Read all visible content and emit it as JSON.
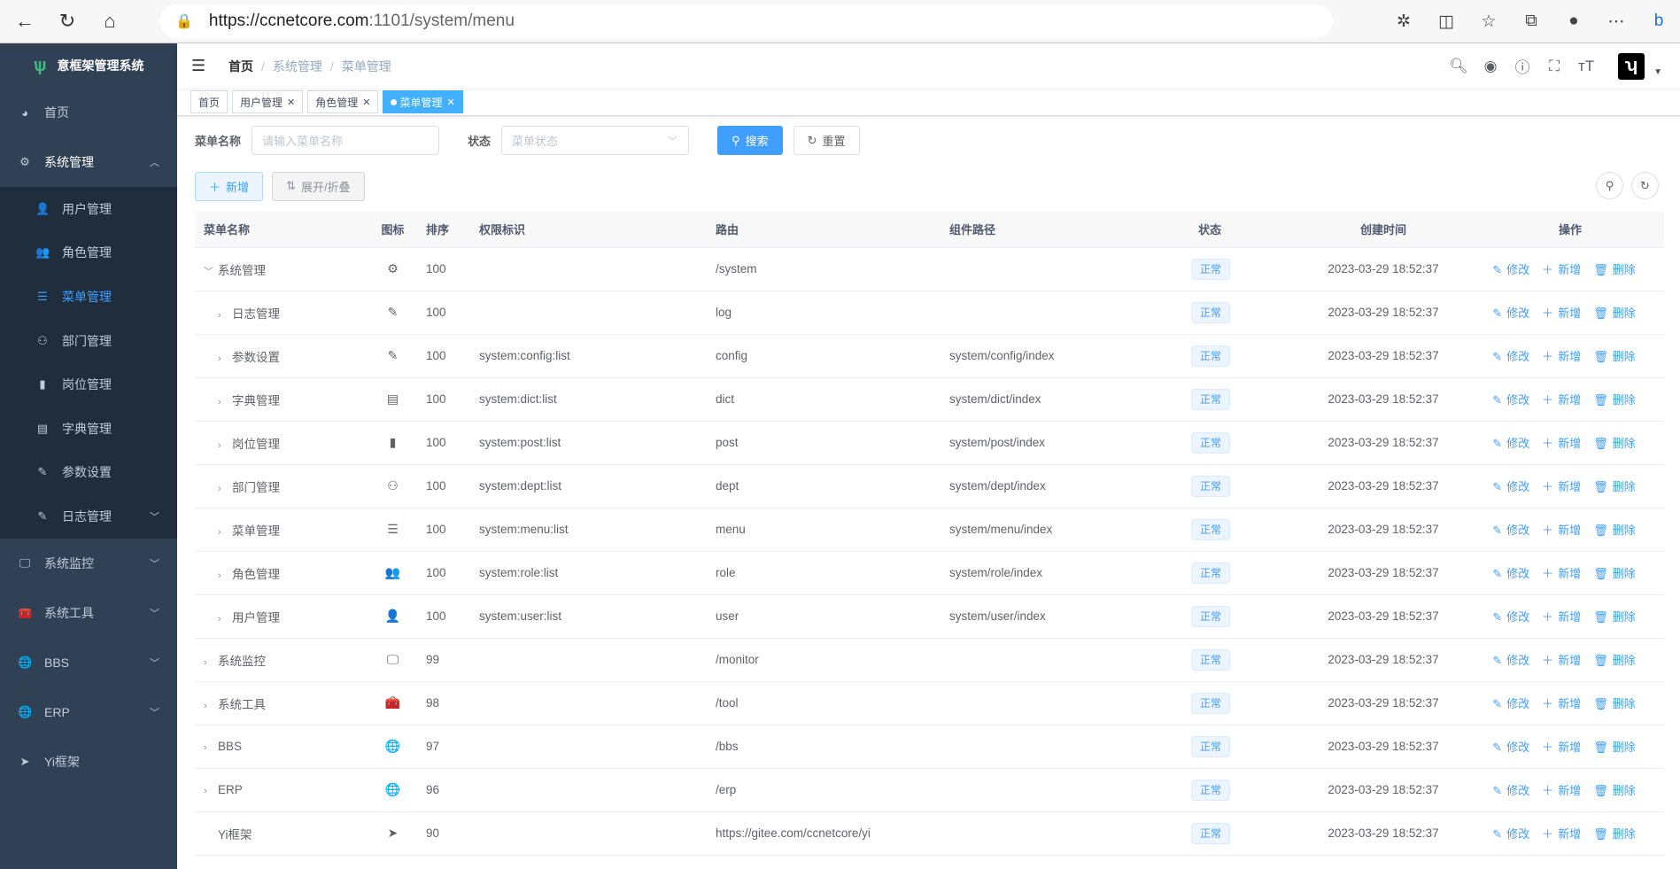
{
  "browser": {
    "url_host": "https://ccnetcore.com",
    "url_path": ":1101/system/menu"
  },
  "sidebar": {
    "title": "意框架管理系统",
    "items": [
      {
        "label": "首页",
        "icon": "dashboard-icon"
      },
      {
        "label": "系统管理",
        "icon": "gear-icon",
        "expanded": true,
        "children": [
          {
            "label": "用户管理",
            "icon": "user-icon"
          },
          {
            "label": "角色管理",
            "icon": "peoples-icon"
          },
          {
            "label": "菜单管理",
            "icon": "tree-table-icon",
            "active": true
          },
          {
            "label": "部门管理",
            "icon": "tree-icon"
          },
          {
            "label": "岗位管理",
            "icon": "post-icon"
          },
          {
            "label": "字典管理",
            "icon": "dict-icon"
          },
          {
            "label": "参数设置",
            "icon": "edit-icon"
          },
          {
            "label": "日志管理",
            "icon": "log-icon"
          }
        ]
      },
      {
        "label": "系统监控",
        "icon": "monitor-icon"
      },
      {
        "label": "系统工具",
        "icon": "tool-icon"
      },
      {
        "label": "BBS",
        "icon": "globe-icon"
      },
      {
        "label": "ERP",
        "icon": "globe-icon"
      },
      {
        "label": "Yi框架",
        "icon": "send-icon"
      }
    ]
  },
  "breadcrumb": [
    "首页",
    "系统管理",
    "菜单管理"
  ],
  "tags": [
    {
      "label": "首页"
    },
    {
      "label": "用户管理"
    },
    {
      "label": "角色管理"
    },
    {
      "label": "菜单管理",
      "active": true
    }
  ],
  "search": {
    "name_label": "菜单名称",
    "name_placeholder": "请输入菜单名称",
    "status_label": "状态",
    "status_placeholder": "菜单状态",
    "search_button": "搜索",
    "reset_button": "重置"
  },
  "toolbar": {
    "add_button": "新增",
    "expand_button": "展开/折叠"
  },
  "table": {
    "columns": [
      "菜单名称",
      "图标",
      "排序",
      "权限标识",
      "路由",
      "组件路径",
      "状态",
      "创建时间",
      "操作"
    ],
    "actions": [
      "修改",
      "新增",
      "删除"
    ],
    "rows": [
      {
        "name": "系统管理",
        "level": 0,
        "expander": "down",
        "icon": "⚙",
        "sort": "100",
        "perms": "",
        "route": "/system",
        "component": "",
        "status": "正常",
        "created": "2023-03-29 18:52:37"
      },
      {
        "name": "日志管理",
        "level": 1,
        "expander": "right",
        "icon": "✎",
        "sort": "100",
        "perms": "",
        "route": "log",
        "component": "",
        "status": "正常",
        "created": "2023-03-29 18:52:37"
      },
      {
        "name": "参数设置",
        "level": 1,
        "expander": "right",
        "icon": "✎",
        "sort": "100",
        "perms": "system:config:list",
        "route": "config",
        "component": "system/config/index",
        "status": "正常",
        "created": "2023-03-29 18:52:37"
      },
      {
        "name": "字典管理",
        "level": 1,
        "expander": "right",
        "icon": "▤",
        "sort": "100",
        "perms": "system:dict:list",
        "route": "dict",
        "component": "system/dict/index",
        "status": "正常",
        "created": "2023-03-29 18:52:37"
      },
      {
        "name": "岗位管理",
        "level": 1,
        "expander": "right",
        "icon": "▮",
        "sort": "100",
        "perms": "system:post:list",
        "route": "post",
        "component": "system/post/index",
        "status": "正常",
        "created": "2023-03-29 18:52:37"
      },
      {
        "name": "部门管理",
        "level": 1,
        "expander": "right",
        "icon": "⚇",
        "sort": "100",
        "perms": "system:dept:list",
        "route": "dept",
        "component": "system/dept/index",
        "status": "正常",
        "created": "2023-03-29 18:52:37"
      },
      {
        "name": "菜单管理",
        "level": 1,
        "expander": "right",
        "icon": "☰",
        "sort": "100",
        "perms": "system:menu:list",
        "route": "menu",
        "component": "system/menu/index",
        "status": "正常",
        "created": "2023-03-29 18:52:37"
      },
      {
        "name": "角色管理",
        "level": 1,
        "expander": "right",
        "icon": "👥",
        "sort": "100",
        "perms": "system:role:list",
        "route": "role",
        "component": "system/role/index",
        "status": "正常",
        "created": "2023-03-29 18:52:37"
      },
      {
        "name": "用户管理",
        "level": 1,
        "expander": "right",
        "icon": "👤",
        "sort": "100",
        "perms": "system:user:list",
        "route": "user",
        "component": "system/user/index",
        "status": "正常",
        "created": "2023-03-29 18:52:37"
      },
      {
        "name": "系统监控",
        "level": 0,
        "expander": "right",
        "icon": "🖵",
        "sort": "99",
        "perms": "",
        "route": "/monitor",
        "component": "",
        "status": "正常",
        "created": "2023-03-29 18:52:37"
      },
      {
        "name": "系统工具",
        "level": 0,
        "expander": "right",
        "icon": "🧰",
        "sort": "98",
        "perms": "",
        "route": "/tool",
        "component": "",
        "status": "正常",
        "created": "2023-03-29 18:52:37"
      },
      {
        "name": "BBS",
        "level": 0,
        "expander": "right",
        "icon": "🌐",
        "sort": "97",
        "perms": "",
        "route": "/bbs",
        "component": "",
        "status": "正常",
        "created": "2023-03-29 18:52:37"
      },
      {
        "name": "ERP",
        "level": 0,
        "expander": "right",
        "icon": "🌐",
        "sort": "96",
        "perms": "",
        "route": "/erp",
        "component": "",
        "status": "正常",
        "created": "2023-03-29 18:52:37"
      },
      {
        "name": "Yi框架",
        "level": 0,
        "expander": "",
        "icon": "➤",
        "sort": "90",
        "perms": "",
        "route": "https://gitee.com/ccnetcore/yi",
        "component": "",
        "status": "正常",
        "created": "2023-03-29 18:52:37"
      }
    ]
  },
  "colors": {
    "sidebar_bg": "#304156",
    "submenu_bg": "#1f2d3d",
    "primary": "#409eff"
  }
}
